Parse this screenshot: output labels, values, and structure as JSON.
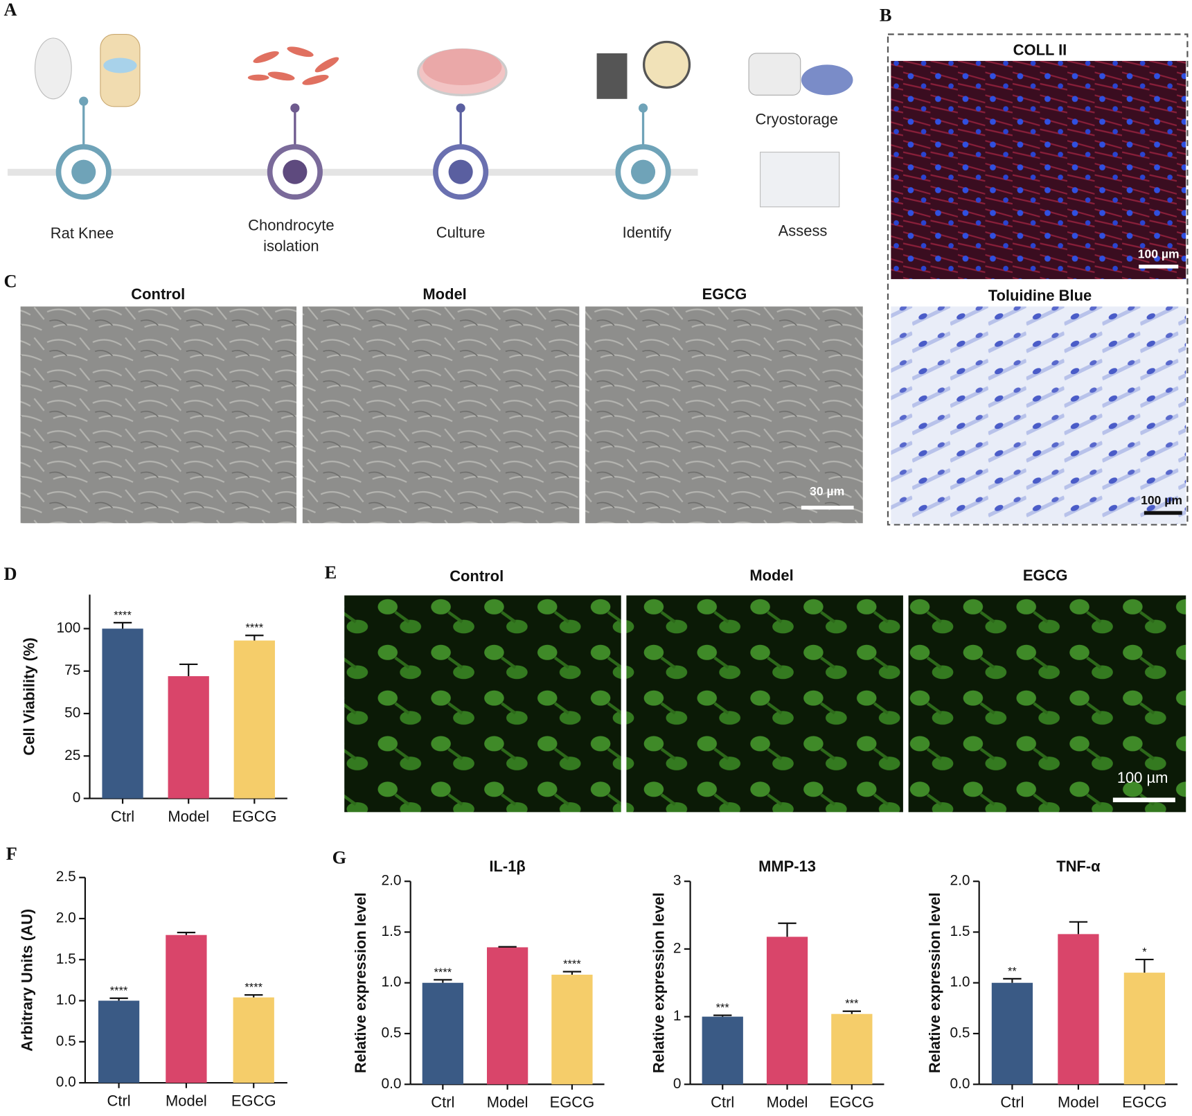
{
  "panel_labels": [
    "A",
    "B",
    "C",
    "D",
    "E",
    "F",
    "G"
  ],
  "timeline": {
    "steps": [
      "Rat Knee",
      "Chondrocyte isolation",
      "Culture",
      "Identify"
    ],
    "side": [
      "Cryostorage",
      "Assess"
    ]
  },
  "staining": {
    "titles": [
      "COLL II",
      "Toluidine Blue"
    ],
    "scale_bars": [
      "100 µm",
      "100 µm"
    ]
  },
  "brightfield": {
    "titles": [
      "Control",
      "Model",
      "EGCG"
    ],
    "scale_bar": "30 µm"
  },
  "fluorescence": {
    "titles": [
      "Control",
      "Model",
      "EGCG"
    ],
    "scale_bar": "100 µm"
  },
  "chart_data": [
    {
      "type": "bar",
      "y_label": "Cell Viability (%)",
      "categories": [
        "Ctrl",
        "Model",
        "EGCG"
      ],
      "values": [
        100,
        72,
        93
      ],
      "errors": [
        3.5,
        7,
        3
      ],
      "significance": [
        "****",
        null,
        "****"
      ],
      "colors": [
        "#3a5a85",
        "#d9456a",
        "#f5cd6a"
      ],
      "ylim": [
        0,
        120
      ],
      "yticks": [
        0,
        25,
        50,
        75,
        100
      ]
    },
    {
      "type": "bar",
      "y_label": "Arbitrary Units (AU)",
      "categories": [
        "Ctrl",
        "Model",
        "EGCG"
      ],
      "values": [
        1.0,
        1.8,
        1.04
      ],
      "errors": [
        0.03,
        0.03,
        0.03
      ],
      "significance": [
        "****",
        null,
        "****"
      ],
      "colors": [
        "#3a5a85",
        "#d9456a",
        "#f5cd6a"
      ],
      "ylim": [
        0,
        2.5
      ],
      "yticks": [
        {
          "value": 0,
          "label": "0.0"
        },
        0.5,
        {
          "value": 1,
          "label": "1.0"
        },
        1.5,
        {
          "value": 2,
          "label": "2.0"
        },
        2.5
      ]
    },
    {
      "type": "bar",
      "title": "IL-1β",
      "y_label": "Relative expression level",
      "categories": [
        "Ctrl",
        "Model",
        "EGCG"
      ],
      "values": [
        1.0,
        1.35,
        1.08
      ],
      "errors": [
        0.03,
        0.005,
        0.03
      ],
      "significance": [
        "****",
        null,
        "****"
      ],
      "colors": [
        "#3a5a85",
        "#d9456a",
        "#f5cd6a"
      ],
      "ylim": [
        0,
        2
      ],
      "yticks": [
        {
          "value": 0,
          "label": "0.0"
        },
        0.5,
        {
          "value": 1,
          "label": "1.0"
        },
        1.5,
        {
          "value": 2,
          "label": "2.0"
        }
      ]
    },
    {
      "type": "bar",
      "title": "MMP-13",
      "y_label": "Relative expression level",
      "categories": [
        "Ctrl",
        "Model",
        "EGCG"
      ],
      "values": [
        1.0,
        2.18,
        1.04
      ],
      "errors": [
        0.02,
        0.2,
        0.04
      ],
      "significance": [
        "***",
        null,
        "***"
      ],
      "colors": [
        "#3a5a85",
        "#d9456a",
        "#f5cd6a"
      ],
      "ylim": [
        0,
        3
      ],
      "yticks": [
        0,
        1,
        2,
        3
      ]
    },
    {
      "type": "bar",
      "title": "TNF-α",
      "y_label": "Relative expression level",
      "categories": [
        "Ctrl",
        "Model",
        "EGCG"
      ],
      "values": [
        1.0,
        1.48,
        1.1
      ],
      "errors": [
        0.04,
        0.12,
        0.13
      ],
      "significance": [
        "**",
        null,
        "*"
      ],
      "colors": [
        "#3a5a85",
        "#d9456a",
        "#f5cd6a"
      ],
      "ylim": [
        0,
        2
      ],
      "yticks": [
        {
          "value": 0,
          "label": "0.0"
        },
        0.5,
        {
          "value": 1,
          "label": "1.0"
        },
        1.5,
        {
          "value": 2,
          "label": "2.0"
        }
      ]
    }
  ]
}
